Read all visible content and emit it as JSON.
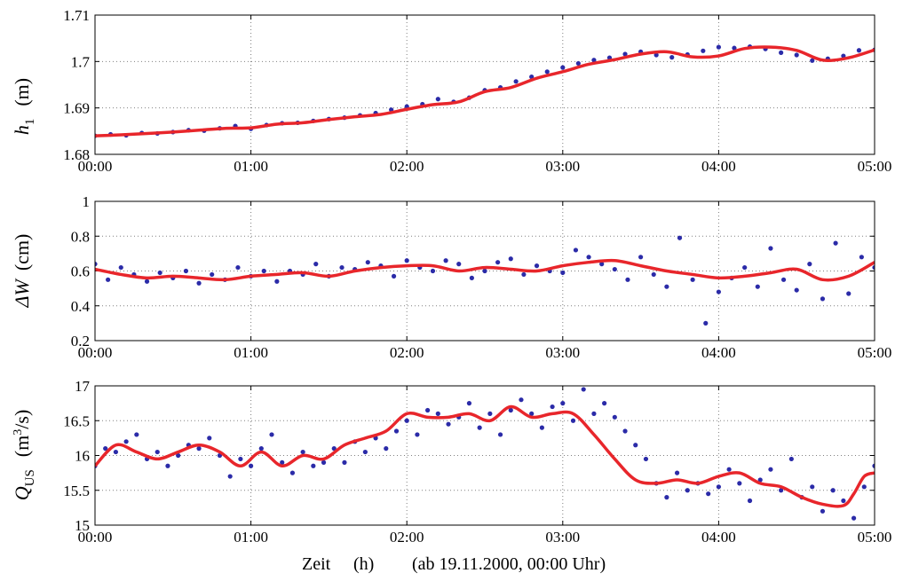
{
  "colors": {
    "points": "#2b2ba8",
    "smooth": "#e8262b",
    "grid": "#808080",
    "axes": "#000000"
  },
  "xlabel": {
    "zeit": "Zeit",
    "unit": "(h)",
    "note": "(ab 19.11.2000, 00:00 Uhr)"
  },
  "panels_ylabels": [
    {
      "symbol": "h",
      "sub": "1",
      "unit": "(m)"
    },
    {
      "symbol": "ΔW",
      "unit": "(cm)"
    },
    {
      "symbol": "Q",
      "sub": "US",
      "unit_pre": "(m",
      "unit_sup": "3",
      "unit_post": "/s)"
    }
  ],
  "chart_data": [
    {
      "type": "scatter",
      "ylabel": "h1 (m)",
      "xlim": [
        0,
        300
      ],
      "ylim": [
        1.68,
        1.71
      ],
      "xticks": [
        "00:00",
        "01:00",
        "02:00",
        "03:00",
        "04:00",
        "05:00"
      ],
      "yticks": [
        "1.68",
        "1.69",
        "1.7",
        "1.71"
      ],
      "grid": true,
      "series": [
        {
          "style": "points",
          "x": [
            0,
            6,
            12,
            18,
            24,
            30,
            36,
            42,
            48,
            54,
            60,
            66,
            72,
            78,
            84,
            90,
            96,
            102,
            108,
            114,
            120,
            126,
            132,
            138,
            144,
            150,
            156,
            162,
            168,
            174,
            180,
            186,
            192,
            198,
            204,
            210,
            216,
            222,
            228,
            234,
            240,
            246,
            252,
            258,
            264,
            270,
            276,
            282,
            288,
            294,
            300
          ],
          "y": [
            1.684,
            1.6843,
            1.6841,
            1.6846,
            1.6845,
            1.6848,
            1.6852,
            1.6851,
            1.6856,
            1.6861,
            1.6855,
            1.6863,
            1.6867,
            1.6868,
            1.6872,
            1.6876,
            1.6879,
            1.6884,
            1.6889,
            1.6896,
            1.6903,
            1.6908,
            1.6919,
            1.6913,
            1.6922,
            1.6938,
            1.6944,
            1.6957,
            1.6967,
            1.6978,
            1.6987,
            1.6996,
            1.7003,
            1.7008,
            1.7016,
            1.7021,
            1.7014,
            1.7009,
            1.7015,
            1.7023,
            1.7031,
            1.7029,
            1.7032,
            1.7027,
            1.7019,
            1.7014,
            1.7002,
            1.7006,
            1.7012,
            1.7024,
            1.7025
          ]
        },
        {
          "style": "smooth",
          "x": [
            0,
            10,
            20,
            30,
            40,
            50,
            60,
            70,
            80,
            90,
            100,
            110,
            120,
            130,
            140,
            150,
            160,
            170,
            180,
            190,
            200,
            210,
            220,
            230,
            240,
            250,
            260,
            270,
            280,
            290,
            300
          ],
          "y": [
            1.684,
            1.6842,
            1.6845,
            1.6848,
            1.6852,
            1.6856,
            1.6857,
            1.6865,
            1.6868,
            1.6875,
            1.6881,
            1.6886,
            1.6897,
            1.6907,
            1.6913,
            1.6935,
            1.6944,
            1.6964,
            1.6978,
            1.6994,
            1.7004,
            1.7016,
            1.7021,
            1.701,
            1.7012,
            1.7028,
            1.7031,
            1.7024,
            1.7003,
            1.7008,
            1.7025
          ]
        }
      ]
    },
    {
      "type": "scatter",
      "ylabel": "ΔW (cm)",
      "xlim": [
        0,
        300
      ],
      "ylim": [
        0.2,
        1.0
      ],
      "xticks": [
        "00:00",
        "01:00",
        "02:00",
        "03:00",
        "04:00",
        "05:00"
      ],
      "yticks": [
        "0.2",
        "0.4",
        "0.6",
        "0.8",
        "1"
      ],
      "grid": true,
      "series": [
        {
          "style": "points",
          "x": [
            0,
            5,
            10,
            15,
            20,
            25,
            30,
            35,
            40,
            45,
            50,
            55,
            60,
            65,
            70,
            75,
            80,
            85,
            90,
            95,
            100,
            105,
            110,
            115,
            120,
            125,
            130,
            135,
            140,
            145,
            150,
            155,
            160,
            165,
            170,
            175,
            180,
            185,
            190,
            195,
            200,
            205,
            210,
            215,
            220,
            225,
            230,
            235,
            240,
            245,
            250,
            255,
            260,
            265,
            270,
            275,
            280,
            285,
            290,
            295,
            300
          ],
          "y": [
            0.64,
            0.55,
            0.62,
            0.58,
            0.54,
            0.59,
            0.56,
            0.6,
            0.53,
            0.58,
            0.55,
            0.62,
            0.57,
            0.6,
            0.54,
            0.6,
            0.58,
            0.64,
            0.57,
            0.62,
            0.61,
            0.65,
            0.63,
            0.57,
            0.66,
            0.62,
            0.6,
            0.66,
            0.64,
            0.56,
            0.6,
            0.65,
            0.67,
            0.58,
            0.63,
            0.6,
            0.59,
            0.72,
            0.68,
            0.64,
            0.61,
            0.55,
            0.68,
            0.58,
            0.51,
            0.79,
            0.55,
            0.3,
            0.48,
            0.56,
            0.62,
            0.51,
            0.73,
            0.55,
            0.49,
            0.64,
            0.44,
            0.76,
            0.47,
            0.68,
            0.62
          ]
        },
        {
          "style": "smooth",
          "x": [
            0,
            10,
            20,
            30,
            40,
            50,
            60,
            70,
            80,
            90,
            100,
            110,
            120,
            130,
            140,
            150,
            160,
            170,
            180,
            190,
            200,
            210,
            220,
            230,
            240,
            250,
            260,
            270,
            280,
            290,
            300
          ],
          "y": [
            0.61,
            0.58,
            0.56,
            0.57,
            0.56,
            0.55,
            0.57,
            0.58,
            0.59,
            0.57,
            0.6,
            0.62,
            0.63,
            0.63,
            0.6,
            0.62,
            0.61,
            0.6,
            0.63,
            0.65,
            0.66,
            0.63,
            0.6,
            0.58,
            0.56,
            0.57,
            0.59,
            0.61,
            0.55,
            0.57,
            0.65
          ]
        }
      ]
    },
    {
      "type": "scatter",
      "ylabel": "Q_US (m3/s)",
      "xlim": [
        0,
        300
      ],
      "ylim": [
        15,
        17
      ],
      "xticks": [
        "00:00",
        "01:00",
        "02:00",
        "03:00",
        "04:00",
        "05:00"
      ],
      "yticks": [
        "15",
        "15.5",
        "16",
        "16.5",
        "17"
      ],
      "grid": true,
      "series": [
        {
          "style": "points",
          "x": [
            0,
            4,
            8,
            12,
            16,
            20,
            24,
            28,
            32,
            36,
            40,
            44,
            48,
            52,
            56,
            60,
            64,
            68,
            72,
            76,
            80,
            84,
            88,
            92,
            96,
            100,
            104,
            108,
            112,
            116,
            120,
            124,
            128,
            132,
            136,
            140,
            144,
            148,
            152,
            156,
            160,
            164,
            168,
            172,
            176,
            180,
            184,
            188,
            192,
            196,
            200,
            204,
            208,
            212,
            216,
            220,
            224,
            228,
            232,
            236,
            240,
            244,
            248,
            252,
            256,
            260,
            264,
            268,
            272,
            276,
            280,
            284,
            288,
            292,
            296,
            300
          ],
          "y": [
            15.85,
            16.1,
            16.05,
            16.2,
            16.3,
            15.95,
            16.05,
            15.85,
            16.0,
            16.15,
            16.1,
            16.25,
            16.0,
            15.7,
            15.95,
            15.85,
            16.1,
            16.3,
            15.9,
            15.75,
            16.05,
            15.85,
            15.9,
            16.1,
            15.9,
            16.2,
            16.05,
            16.25,
            16.1,
            16.35,
            16.5,
            16.3,
            16.65,
            16.6,
            16.45,
            16.55,
            16.75,
            16.4,
            16.6,
            16.3,
            16.65,
            16.8,
            16.6,
            16.4,
            16.7,
            16.75,
            16.5,
            16.95,
            16.6,
            16.75,
            16.55,
            16.35,
            16.15,
            15.95,
            15.6,
            15.4,
            15.75,
            15.5,
            15.6,
            15.45,
            15.55,
            15.8,
            15.6,
            15.35,
            15.65,
            15.8,
            15.5,
            15.95,
            15.4,
            15.55,
            15.2,
            15.5,
            15.35,
            15.1,
            15.55,
            15.85
          ]
        },
        {
          "style": "smooth",
          "x": [
            0,
            8,
            16,
            24,
            32,
            40,
            48,
            56,
            64,
            72,
            80,
            88,
            96,
            104,
            112,
            120,
            128,
            136,
            144,
            152,
            160,
            168,
            176,
            184,
            192,
            200,
            208,
            216,
            224,
            232,
            240,
            248,
            256,
            264,
            272,
            280,
            288,
            292,
            296,
            300
          ],
          "y": [
            15.85,
            16.15,
            16.05,
            15.95,
            16.05,
            16.15,
            16.05,
            15.85,
            16.05,
            15.85,
            16.0,
            15.95,
            16.15,
            16.25,
            16.35,
            16.6,
            16.55,
            16.55,
            16.6,
            16.5,
            16.7,
            16.55,
            16.6,
            16.6,
            16.3,
            15.95,
            15.65,
            15.6,
            15.65,
            15.6,
            15.7,
            15.75,
            15.6,
            15.55,
            15.4,
            15.3,
            15.28,
            15.45,
            15.7,
            15.75
          ]
        }
      ]
    }
  ]
}
